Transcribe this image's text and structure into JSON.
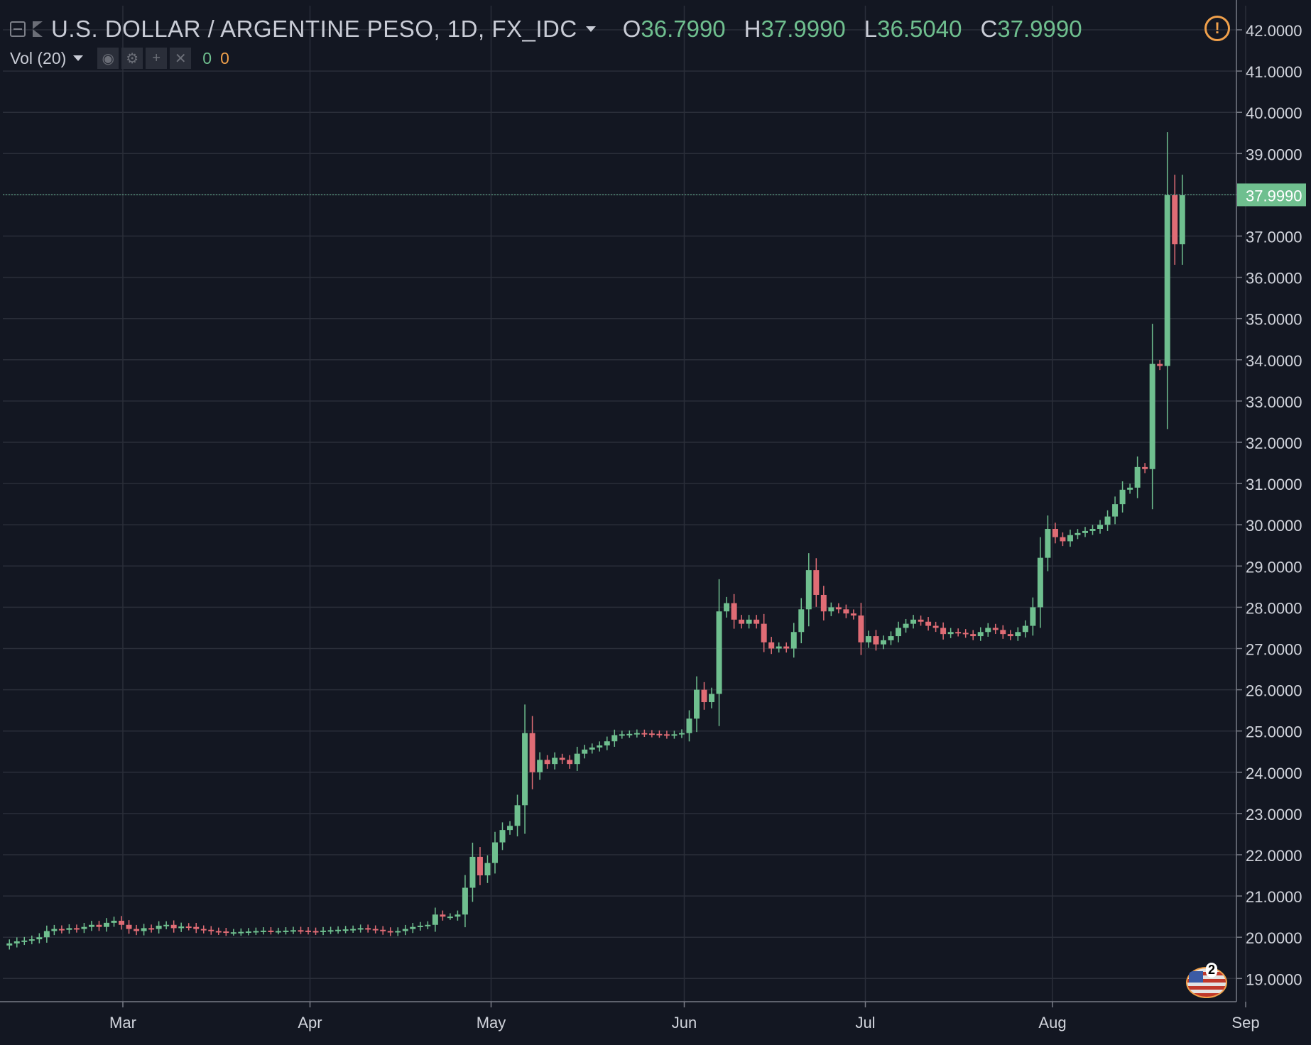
{
  "header": {
    "symbol": "U.S. DOLLAR / ARGENTINE PESO, 1D, FX_IDC",
    "ohlc": [
      {
        "label": "O",
        "value": "36.7990"
      },
      {
        "label": "H",
        "value": "37.9990"
      },
      {
        "label": "L",
        "value": "36.5040"
      },
      {
        "label": "C",
        "value": "37.9990"
      }
    ],
    "volume_label": "Vol (20)",
    "volume_values": [
      "0",
      "0"
    ],
    "alert_icon": "!",
    "flag_badge": "2",
    "icons": [
      "collapse-icon",
      "flag-icon",
      "eye-icon",
      "gear-icon",
      "plus-icon",
      "close-icon",
      "warning-icon",
      "us-flag-icon"
    ]
  },
  "colors": {
    "background": "#131722",
    "grid": "#2a2e39",
    "up": "#6fbf8f",
    "down": "#e06c75",
    "axis_text": "#d1d4dc",
    "price_line": "#5fa88a",
    "warning": "#f0a04b"
  },
  "chart_data": {
    "type": "candlestick",
    "title": "U.S. DOLLAR / ARGENTINE PESO, 1D, FX_IDC",
    "ylim": [
      18.5,
      42.3
    ],
    "y_ticks": [
      "19.0000",
      "20.0000",
      "21.0000",
      "22.0000",
      "23.0000",
      "24.0000",
      "25.0000",
      "26.0000",
      "27.0000",
      "28.0000",
      "29.0000",
      "30.0000",
      "31.0000",
      "32.0000",
      "33.0000",
      "34.0000",
      "35.0000",
      "36.0000",
      "37.0000",
      "38.0000",
      "39.0000",
      "40.0000",
      "41.0000",
      "42.0000"
    ],
    "x_ticks": [
      {
        "label": "Mar",
        "index": 10
      },
      {
        "label": "Apr",
        "index": 41
      },
      {
        "label": "May",
        "index": 71
      },
      {
        "label": "Jun",
        "index": 103
      },
      {
        "label": "Jul",
        "index": 133
      },
      {
        "label": "Aug",
        "index": 164
      },
      {
        "label": "Sep",
        "index": 196
      }
    ],
    "last_price": "37.9990",
    "closes": [
      19.85,
      19.9,
      19.92,
      19.95,
      20.0,
      20.15,
      20.2,
      20.18,
      20.22,
      20.2,
      20.25,
      20.3,
      20.25,
      20.35,
      20.4,
      20.3,
      20.2,
      20.15,
      20.22,
      20.2,
      20.28,
      20.3,
      20.22,
      20.26,
      20.25,
      20.2,
      20.18,
      20.15,
      20.14,
      20.12,
      20.12,
      20.13,
      20.14,
      20.15,
      20.16,
      20.15,
      20.15,
      20.16,
      20.17,
      20.16,
      20.15,
      20.14,
      20.16,
      20.17,
      20.18,
      20.19,
      20.2,
      20.22,
      20.2,
      20.18,
      20.15,
      20.12,
      20.15,
      20.2,
      20.25,
      20.28,
      20.3,
      20.55,
      20.5,
      20.5,
      20.55,
      21.2,
      21.95,
      21.5,
      21.8,
      22.3,
      22.6,
      22.7,
      23.2,
      24.95,
      24.0,
      24.3,
      24.2,
      24.35,
      24.3,
      24.2,
      24.45,
      24.55,
      24.6,
      24.65,
      24.75,
      24.9,
      24.92,
      24.93,
      24.95,
      24.94,
      24.93,
      24.92,
      24.9,
      24.92,
      24.95,
      25.3,
      26.0,
      25.7,
      25.9,
      27.9,
      28.1,
      27.7,
      27.6,
      27.7,
      27.6,
      27.15,
      27.0,
      27.05,
      27.0,
      27.4,
      27.95,
      28.9,
      28.3,
      27.9,
      28.0,
      27.95,
      27.85,
      27.8,
      27.15,
      27.3,
      27.1,
      27.2,
      27.3,
      27.5,
      27.6,
      27.7,
      27.65,
      27.55,
      27.5,
      27.35,
      27.4,
      27.38,
      27.35,
      27.3,
      27.4,
      27.5,
      27.45,
      27.35,
      27.3,
      27.4,
      27.55,
      28.0,
      29.2,
      29.9,
      29.7,
      29.6,
      29.75,
      29.8,
      29.85,
      29.9,
      30.0,
      30.2,
      30.5,
      30.85,
      30.9,
      31.4,
      31.35,
      33.9,
      33.85,
      37.99,
      36.8,
      37.99
    ],
    "series_note": "daily OHLC derived from closes"
  }
}
